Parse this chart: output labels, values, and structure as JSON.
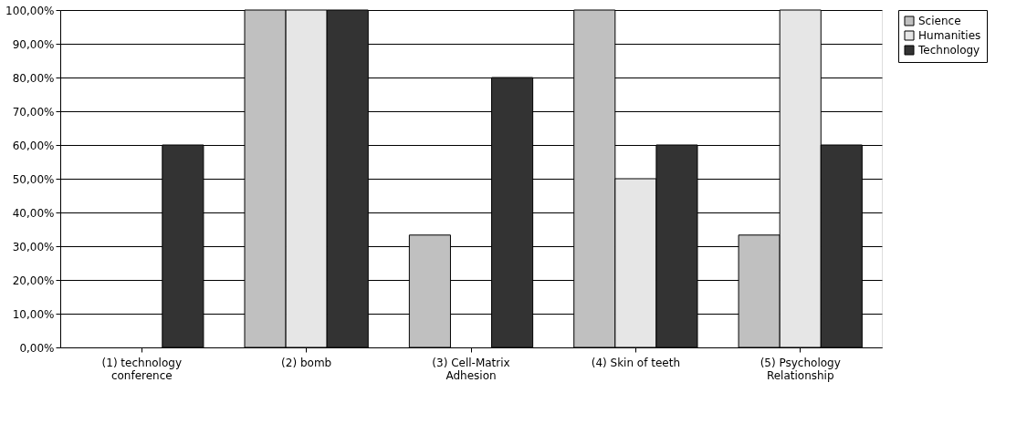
{
  "chart_data": {
    "type": "bar",
    "categories": [
      "(1) technology conference",
      "(2) bomb",
      "(3) Cell-Matrix Adhesion",
      "(4) Skin of teeth",
      "(5) Psychology Relationship"
    ],
    "series": [
      {
        "name": "Science",
        "color": "#c0c0c0",
        "values": [
          null,
          100,
          33.3,
          100,
          33.3
        ]
      },
      {
        "name": "Humanities",
        "color": "#e6e6e6",
        "values": [
          null,
          100,
          null,
          50,
          100
        ]
      },
      {
        "name": "Technology",
        "color": "#333333",
        "values": [
          60,
          100,
          80,
          60,
          60
        ]
      }
    ],
    "ylim": [
      0,
      100
    ],
    "yticks": [
      {
        "value": 0,
        "label": "0,00%"
      },
      {
        "value": 10,
        "label": "10,00%"
      },
      {
        "value": 20,
        "label": "20,00%"
      },
      {
        "value": 30,
        "label": "30,00%"
      },
      {
        "value": 40,
        "label": "40,00%"
      },
      {
        "value": 50,
        "label": "50,00%"
      },
      {
        "value": 60,
        "label": "60,00%"
      },
      {
        "value": 70,
        "label": "70,00%"
      },
      {
        "value": 80,
        "label": "80,00%"
      },
      {
        "value": 90,
        "label": "90,00%"
      },
      {
        "value": 100,
        "label": "100,00%"
      }
    ],
    "grid": "y",
    "legend": "right"
  }
}
